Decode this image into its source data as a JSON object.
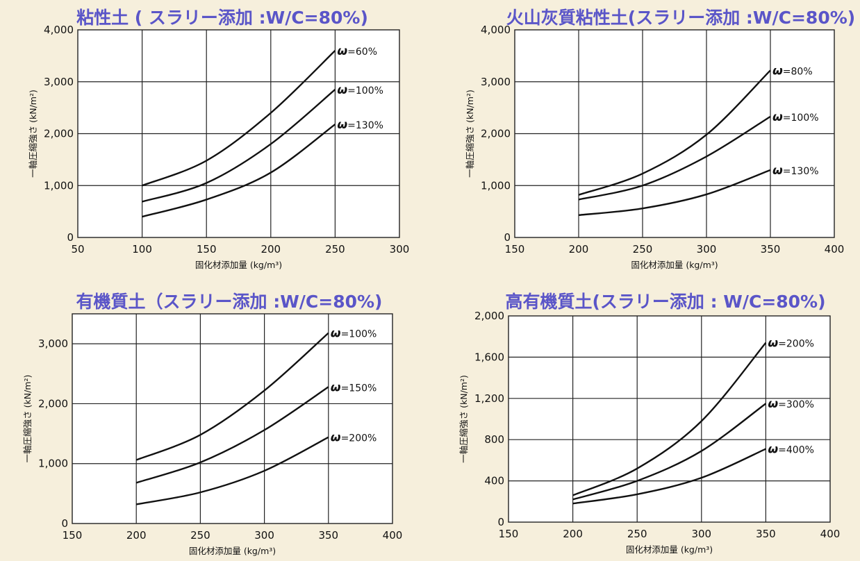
{
  "chart_data": [
    {
      "type": "line",
      "title": "粘性土 ( スラリー添加 :W/C=80%)",
      "xlabel": "固化材添加量 (kg/m³)",
      "ylabel": "一軸圧縮強さ (kN/m²)",
      "xlim": [
        50,
        300
      ],
      "ylim": [
        0,
        4000
      ],
      "xticks": [
        50,
        100,
        150,
        200,
        250,
        300
      ],
      "yticks": [
        0,
        1000,
        2000,
        3000,
        4000
      ],
      "ytick_labels": [
        "0",
        "1,000",
        "2,000",
        "3,000",
        "4,000"
      ],
      "grid": true,
      "series": [
        {
          "name": "=60%",
          "x": [
            100,
            150,
            200,
            250
          ],
          "y": [
            1000,
            1480,
            2400,
            3600
          ]
        },
        {
          "name": "=100%",
          "x": [
            100,
            150,
            200,
            250
          ],
          "y": [
            690,
            1050,
            1800,
            2850
          ]
        },
        {
          "name": "=130%",
          "x": [
            100,
            150,
            200,
            250
          ],
          "y": [
            400,
            730,
            1250,
            2180
          ]
        }
      ]
    },
    {
      "type": "line",
      "title": "火山灰質粘性土(スラリー添加 :W/C=80%)",
      "xlabel": "固化材添加量 (kg/m³)",
      "ylabel": "一軸圧縮強さ (kN/m²)",
      "xlim": [
        150,
        400
      ],
      "ylim": [
        0,
        4000
      ],
      "xticks": [
        150,
        200,
        250,
        300,
        350,
        400
      ],
      "yticks": [
        0,
        1000,
        2000,
        3000,
        4000
      ],
      "ytick_labels": [
        "0",
        "1,000",
        "2,000",
        "3,000",
        "4,000"
      ],
      "grid": true,
      "series": [
        {
          "name": "=80%",
          "x": [
            200,
            250,
            300,
            350
          ],
          "y": [
            820,
            1230,
            1980,
            3220
          ]
        },
        {
          "name": "=100%",
          "x": [
            200,
            250,
            300,
            350
          ],
          "y": [
            730,
            1000,
            1560,
            2330
          ]
        },
        {
          "name": "=130%",
          "x": [
            200,
            250,
            300,
            350
          ],
          "y": [
            430,
            560,
            830,
            1300
          ]
        }
      ]
    },
    {
      "type": "line",
      "title": "有機質土（スラリー添加 :W/C=80%)",
      "xlabel": "固化材添加量 (kg/m³)",
      "ylabel": "一軸圧縮強さ (kN/m²)",
      "xlim": [
        150,
        400
      ],
      "ylim": [
        0,
        3500
      ],
      "xticks": [
        150,
        200,
        250,
        300,
        350,
        400
      ],
      "yticks": [
        0,
        1000,
        2000,
        3000
      ],
      "ytick_labels": [
        "0",
        "1,000",
        "2,000",
        "3,000"
      ],
      "grid": true,
      "series": [
        {
          "name": "=100%",
          "x": [
            200,
            250,
            300,
            350
          ],
          "y": [
            1060,
            1480,
            2220,
            3180
          ]
        },
        {
          "name": "=150%",
          "x": [
            200,
            250,
            300,
            350
          ],
          "y": [
            680,
            1020,
            1560,
            2280
          ]
        },
        {
          "name": "=200%",
          "x": [
            200,
            250,
            300,
            350
          ],
          "y": [
            320,
            520,
            880,
            1440
          ]
        }
      ]
    },
    {
      "type": "line",
      "title": "高有機質土(スラリー添加 : W/C=80%)",
      "xlabel": "固化材添加量 (kg/m³)",
      "ylabel": "一軸圧縮強さ (kN/m²)",
      "xlim": [
        150,
        400
      ],
      "ylim": [
        0,
        2000
      ],
      "xticks": [
        150,
        200,
        250,
        300,
        350,
        400
      ],
      "yticks": [
        0,
        400,
        800,
        1200,
        1600,
        2000
      ],
      "ytick_labels": [
        "0",
        "400",
        "800",
        "1,200",
        "1,600",
        "2,000"
      ],
      "grid": true,
      "series": [
        {
          "name": "=200%",
          "x": [
            200,
            250,
            300,
            350
          ],
          "y": [
            260,
            520,
            980,
            1740
          ]
        },
        {
          "name": "=300%",
          "x": [
            200,
            250,
            300,
            350
          ],
          "y": [
            220,
            400,
            690,
            1150
          ]
        },
        {
          "name": "=400%",
          "x": [
            200,
            250,
            300,
            350
          ],
          "y": [
            180,
            270,
            430,
            710
          ]
        }
      ]
    }
  ],
  "colors": {
    "background": "#f6efdc",
    "plot_background": "#ffffff",
    "title": "#5a55c8",
    "line": "#111111",
    "grid": "#222222"
  }
}
